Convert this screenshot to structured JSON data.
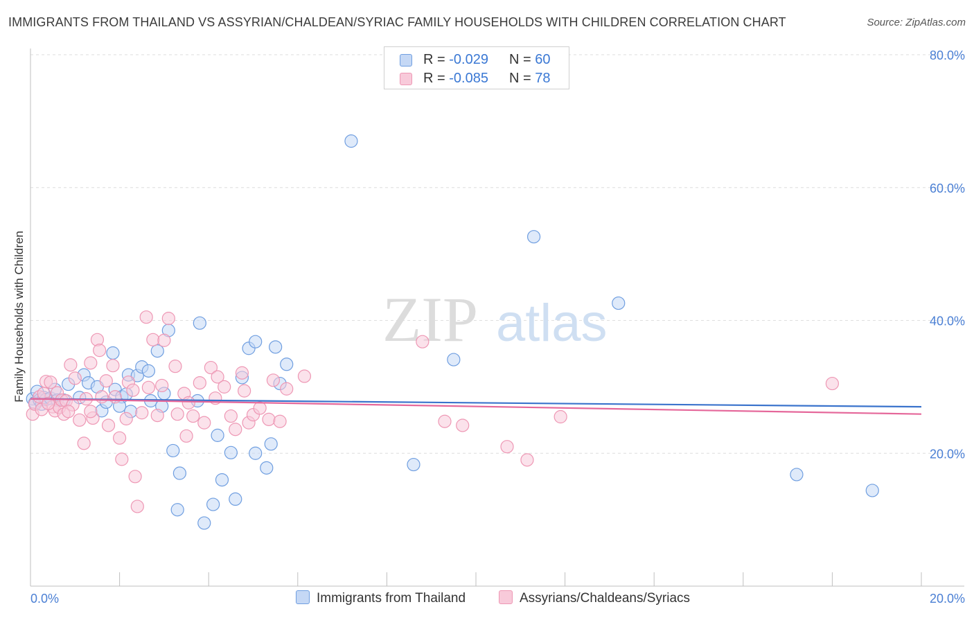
{
  "header": {
    "title": "IMMIGRANTS FROM THAILAND VS ASSYRIAN/CHALDEAN/SYRIAC FAMILY HOUSEHOLDS WITH CHILDREN CORRELATION CHART",
    "source": "Source: ZipAtlas.com"
  },
  "legend": {
    "series1": {
      "r_label": "R =",
      "r_value": "-0.029",
      "n_label": "N =",
      "n_value": "60"
    },
    "series2": {
      "r_label": "R =",
      "r_value": "-0.085",
      "n_label": "N =",
      "n_value": "78"
    }
  },
  "bottom_legend": {
    "series1": "Immigrants from Thailand",
    "series2": "Assyrians/Chaldeans/Syriacs"
  },
  "watermark": {
    "zip": "ZIP",
    "atlas": "atlas"
  },
  "colors": {
    "series1_fill": "#c5d8f5",
    "series1_stroke": "#6f9ee0",
    "series1_line": "#3a73cc",
    "series2_fill": "#f8cada",
    "series2_stroke": "#ee97b4",
    "series2_line": "#e5679a",
    "tick": "#4a7fd4",
    "grid": "#dedede"
  },
  "chart_data": {
    "type": "scatter",
    "title": "IMMIGRANTS FROM THAILAND VS ASSYRIAN/CHALDEAN/SYRIAC FAMILY HOUSEHOLDS WITH CHILDREN CORRELATION CHART",
    "xlabel": "",
    "ylabel": "Family Households with Children",
    "xlim": [
      0,
      20
    ],
    "ylim": [
      0,
      80
    ],
    "x_ticks": [
      "0.0%",
      "20.0%"
    ],
    "y_ticks": [
      {
        "value": 20,
        "label": "20.0%"
      },
      {
        "value": 40,
        "label": "40.0%"
      },
      {
        "value": 60,
        "label": "60.0%"
      },
      {
        "value": 80,
        "label": "80.0%"
      }
    ],
    "grid": true,
    "legend_position": "top-center",
    "series": [
      {
        "name": "Immigrants from Thailand",
        "color": "#6f9ee0",
        "trend": {
          "x": [
            0,
            20
          ],
          "y": [
            28.2,
            27.0
          ]
        },
        "points": [
          [
            0.05,
            28.2
          ],
          [
            0.1,
            27.6
          ],
          [
            0.15,
            29.3
          ],
          [
            0.2,
            28.0
          ],
          [
            0.25,
            27.4
          ],
          [
            0.3,
            28.4
          ],
          [
            0.35,
            28.1
          ],
          [
            0.45,
            28.3
          ],
          [
            0.55,
            29.6
          ],
          [
            0.6,
            28.0
          ],
          [
            0.75,
            28.0
          ],
          [
            0.85,
            30.4
          ],
          [
            1.2,
            31.8
          ],
          [
            1.1,
            28.4
          ],
          [
            1.3,
            30.6
          ],
          [
            1.5,
            30.0
          ],
          [
            1.6,
            26.4
          ],
          [
            1.7,
            27.7
          ],
          [
            1.85,
            35.1
          ],
          [
            1.9,
            29.6
          ],
          [
            2.05,
            28.5
          ],
          [
            2.15,
            28.9
          ],
          [
            2.2,
            31.8
          ],
          [
            2.25,
            26.3
          ],
          [
            2.4,
            31.7
          ],
          [
            2.5,
            33.0
          ],
          [
            2.65,
            32.4
          ],
          [
            2.7,
            27.9
          ],
          [
            2.85,
            35.4
          ],
          [
            2.95,
            27.1
          ],
          [
            3.0,
            29.0
          ],
          [
            3.1,
            38.5
          ],
          [
            3.8,
            39.6
          ],
          [
            3.75,
            27.9
          ],
          [
            3.2,
            20.4
          ],
          [
            3.35,
            17.0
          ],
          [
            3.3,
            11.5
          ],
          [
            4.2,
            22.7
          ],
          [
            4.1,
            12.3
          ],
          [
            4.3,
            16.0
          ],
          [
            4.5,
            20.1
          ],
          [
            4.6,
            13.1
          ],
          [
            4.75,
            31.4
          ],
          [
            4.9,
            35.8
          ],
          [
            5.05,
            36.8
          ],
          [
            5.05,
            20.0
          ],
          [
            5.3,
            17.8
          ],
          [
            5.4,
            21.4
          ],
          [
            5.5,
            36.0
          ],
          [
            5.6,
            30.5
          ],
          [
            5.75,
            33.4
          ],
          [
            3.9,
            9.5
          ],
          [
            7.2,
            67.0
          ],
          [
            8.6,
            18.3
          ],
          [
            9.5,
            34.1
          ],
          [
            11.3,
            52.6
          ],
          [
            13.2,
            42.6
          ],
          [
            17.2,
            16.8
          ],
          [
            18.9,
            14.4
          ],
          [
            2.0,
            27.1
          ]
        ]
      },
      {
        "name": "Assyrians/Chaldeans/Syriacs",
        "color": "#ee97b4",
        "trend": {
          "x": [
            0,
            20
          ],
          "y": [
            28.2,
            25.9
          ]
        },
        "points": [
          [
            0.05,
            25.9
          ],
          [
            0.1,
            27.4
          ],
          [
            0.2,
            28.5
          ],
          [
            0.3,
            29.0
          ],
          [
            0.35,
            30.8
          ],
          [
            0.45,
            30.7
          ],
          [
            0.5,
            27.0
          ],
          [
            0.55,
            26.4
          ],
          [
            0.6,
            29.1
          ],
          [
            0.65,
            26.9
          ],
          [
            0.7,
            28.0
          ],
          [
            0.75,
            25.9
          ],
          [
            0.8,
            27.9
          ],
          [
            0.9,
            33.3
          ],
          [
            0.95,
            27.3
          ],
          [
            1.0,
            31.3
          ],
          [
            1.1,
            25.0
          ],
          [
            1.2,
            21.5
          ],
          [
            1.25,
            28.2
          ],
          [
            1.35,
            33.6
          ],
          [
            1.4,
            25.3
          ],
          [
            1.5,
            37.1
          ],
          [
            1.55,
            35.5
          ],
          [
            1.7,
            30.9
          ],
          [
            1.75,
            24.2
          ],
          [
            1.85,
            33.2
          ],
          [
            1.9,
            28.5
          ],
          [
            2.0,
            22.3
          ],
          [
            2.05,
            19.1
          ],
          [
            2.15,
            25.2
          ],
          [
            2.2,
            30.7
          ],
          [
            2.35,
            16.5
          ],
          [
            2.4,
            12.0
          ],
          [
            2.5,
            26.1
          ],
          [
            2.6,
            40.5
          ],
          [
            2.65,
            29.9
          ],
          [
            2.75,
            37.1
          ],
          [
            2.85,
            25.7
          ],
          [
            2.95,
            30.2
          ],
          [
            3.0,
            37.0
          ],
          [
            3.1,
            40.3
          ],
          [
            3.25,
            33.1
          ],
          [
            3.3,
            25.9
          ],
          [
            3.45,
            29.0
          ],
          [
            3.5,
            22.6
          ],
          [
            3.65,
            25.6
          ],
          [
            3.8,
            30.6
          ],
          [
            3.9,
            24.6
          ],
          [
            4.05,
            32.9
          ],
          [
            4.2,
            31.5
          ],
          [
            4.35,
            30.0
          ],
          [
            4.5,
            25.6
          ],
          [
            4.6,
            23.6
          ],
          [
            4.75,
            32.1
          ],
          [
            4.8,
            29.4
          ],
          [
            4.9,
            24.6
          ],
          [
            5.0,
            25.8
          ],
          [
            5.15,
            26.8
          ],
          [
            5.35,
            25.1
          ],
          [
            5.45,
            31.0
          ],
          [
            5.6,
            24.8
          ],
          [
            5.75,
            29.7
          ],
          [
            6.15,
            31.6
          ],
          [
            8.8,
            36.8
          ],
          [
            9.3,
            24.8
          ],
          [
            9.7,
            24.2
          ],
          [
            10.7,
            21.0
          ],
          [
            11.15,
            19.0
          ],
          [
            11.9,
            25.5
          ],
          [
            18.0,
            30.5
          ],
          [
            1.35,
            26.3
          ],
          [
            0.25,
            26.6
          ],
          [
            0.4,
            27.5
          ],
          [
            0.85,
            26.3
          ],
          [
            1.6,
            28.5
          ],
          [
            2.3,
            29.5
          ],
          [
            3.55,
            27.6
          ],
          [
            4.15,
            28.3
          ]
        ]
      }
    ]
  }
}
